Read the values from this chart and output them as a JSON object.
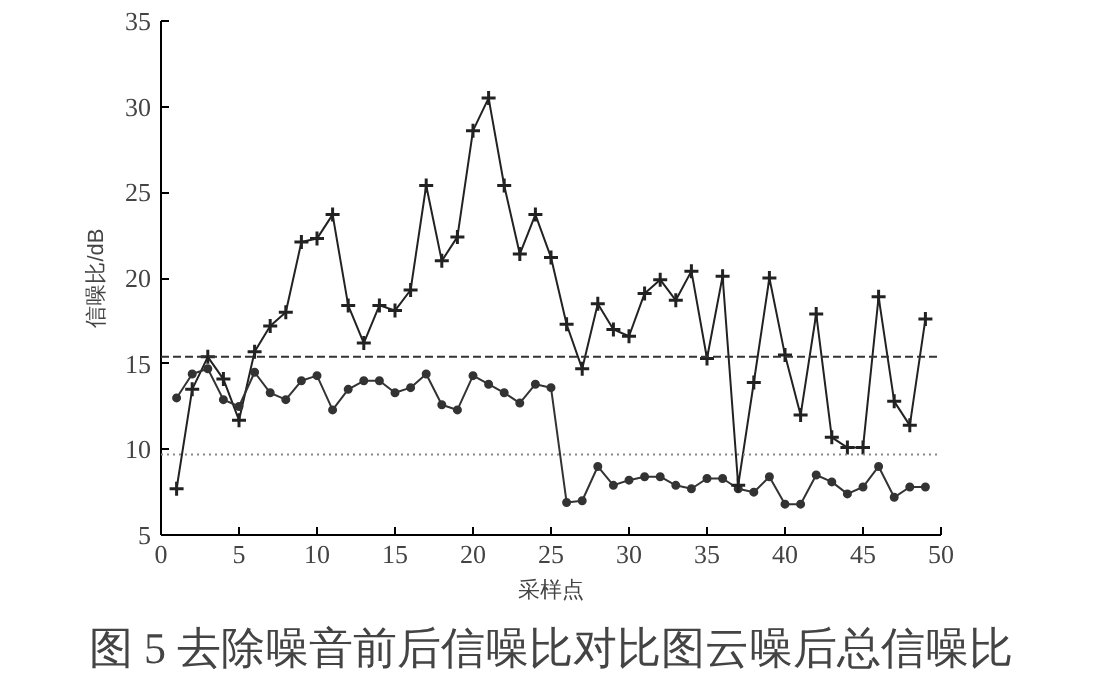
{
  "chart_data": {
    "type": "line",
    "title": "图 5 去除噪音前后信噪比对比图云噪后总信噪比",
    "xlabel": "采样点",
    "ylabel": "信噪比/dB",
    "x": [
      1,
      2,
      3,
      4,
      5,
      6,
      7,
      8,
      9,
      10,
      11,
      12,
      13,
      14,
      15,
      16,
      17,
      18,
      19,
      20,
      21,
      22,
      23,
      24,
      25,
      26,
      27,
      28,
      29,
      30,
      31,
      32,
      33,
      34,
      35,
      36,
      37,
      38,
      39,
      40,
      41,
      42,
      43,
      44,
      45,
      46,
      47,
      48,
      49
    ],
    "series": [
      {
        "color": "#222222",
        "marker": "cross",
        "values": [
          7.7,
          13.5,
          15.4,
          14.1,
          11.7,
          15.7,
          17.2,
          18.0,
          22.1,
          22.3,
          23.7,
          18.4,
          16.2,
          18.4,
          18.1,
          19.3,
          25.4,
          21.0,
          22.4,
          28.6,
          30.5,
          25.4,
          21.4,
          23.7,
          21.2,
          17.3,
          14.7,
          18.5,
          17.0,
          16.6,
          19.1,
          19.9,
          18.7,
          20.4,
          15.3,
          20.1,
          7.9,
          13.9,
          20.0,
          15.5,
          12.0,
          17.9,
          10.7,
          10.1,
          10.1,
          18.9,
          12.8,
          11.4,
          17.6
        ]
      },
      {
        "color": "#333333",
        "marker": "circle",
        "values": [
          13.0,
          14.4,
          14.7,
          12.9,
          12.5,
          14.5,
          13.3,
          12.9,
          14.0,
          14.3,
          12.3,
          13.5,
          14.0,
          14.0,
          13.3,
          13.6,
          14.4,
          12.6,
          12.3,
          14.3,
          13.8,
          13.3,
          12.7,
          13.8,
          13.6,
          6.9,
          7.0,
          9.0,
          7.9,
          8.2,
          8.4,
          8.4,
          7.9,
          7.7,
          8.3,
          8.3,
          7.7,
          7.5,
          8.4,
          6.8,
          6.8,
          8.5,
          8.1,
          7.4,
          7.8,
          9.0,
          7.2,
          7.8,
          7.8
        ]
      }
    ],
    "ref_lines": [
      {
        "axis": "y",
        "value": 15.4,
        "color": "#333333",
        "line_style": "dashed"
      },
      {
        "axis": "y",
        "value": 9.7,
        "color": "#888888",
        "line_style": "dotted"
      }
    ],
    "xlim": [
      0,
      50
    ],
    "xticks": [
      0,
      5,
      10,
      15,
      20,
      25,
      30,
      35,
      40,
      45,
      50
    ],
    "ylim": [
      5,
      35
    ],
    "yticks": [
      5,
      10,
      15,
      20,
      25,
      30,
      35
    ],
    "grid": false,
    "line_style": "solid"
  }
}
